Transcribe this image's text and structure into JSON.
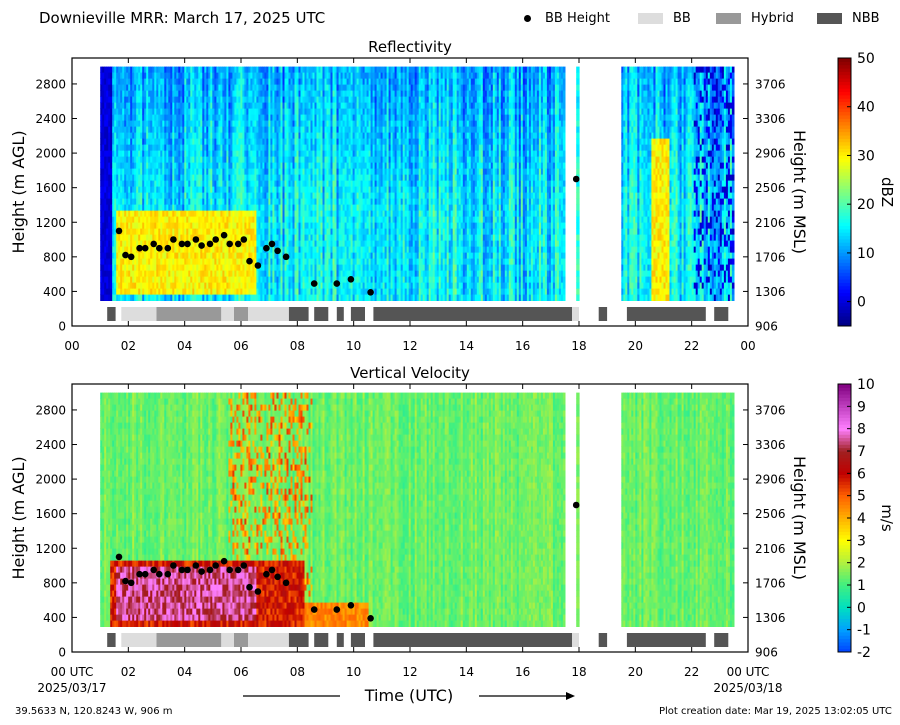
{
  "header": {
    "title": "Downieville MRR:  March 17, 2025 UTC",
    "legend": [
      {
        "label": "BB Height",
        "kind": "dot",
        "color": "#000000"
      },
      {
        "label": "BB",
        "kind": "bar",
        "color": "#dddddd"
      },
      {
        "label": "Hybrid",
        "kind": "bar",
        "color": "#999999"
      },
      {
        "label": "NBB",
        "kind": "bar",
        "color": "#555555"
      }
    ]
  },
  "footer": {
    "location": "39.5633 N, 120.8243 W, 906 m",
    "created": "Plot creation date: Mar 19, 2025 13:02:05 UTC",
    "x_axis_title": "Time (UTC)",
    "start_label": [
      "00 UTC",
      "2025/03/17"
    ],
    "end_label": [
      "00 UTC",
      "2025/03/18"
    ]
  },
  "chart_data": [
    {
      "type": "heatmap",
      "title": "Reflectivity",
      "xlabel": "Time (UTC)",
      "ylabel": "Height (m AGL)",
      "ylabel_right": "Height (m MSL)",
      "xlim": [
        0,
        24
      ],
      "ylim": [
        0,
        3100
      ],
      "x_ticks": [
        "00",
        "02",
        "04",
        "06",
        "08",
        "10",
        "12",
        "14",
        "16",
        "18",
        "20",
        "22",
        "00"
      ],
      "y_ticks": [
        0,
        400,
        800,
        1200,
        1600,
        2000,
        2400,
        2800
      ],
      "y_ticks_right": [
        906,
        1306,
        1706,
        2106,
        2506,
        2906,
        3306,
        3706
      ],
      "colorbar": {
        "label": "dBZ",
        "min": -5,
        "max": 50,
        "ticks": [
          0,
          10,
          20,
          30,
          40,
          50
        ],
        "colors": [
          "#00007f",
          "#0000ff",
          "#0080ff",
          "#00ffff",
          "#7fff7f",
          "#ffff00",
          "#ff8000",
          "#ff0000",
          "#7f0000"
        ]
      },
      "data_coverage_hours": [
        [
          1.0,
          17.5
        ],
        [
          17.9,
          18.0
        ],
        [
          19.5,
          23.5
        ]
      ],
      "enhanced_region": {
        "x": [
          1.5,
          6.5
        ],
        "y": [
          400,
          1350
        ],
        "value": 30
      },
      "bb_height": {
        "x": [
          1.67,
          1.9,
          2.1,
          2.4,
          2.6,
          2.9,
          3.1,
          3.4,
          3.6,
          3.9,
          4.1,
          4.4,
          4.6,
          4.9,
          5.1,
          5.4,
          5.6,
          5.9,
          6.1,
          6.3,
          6.6,
          6.9,
          7.1,
          7.3,
          7.6,
          8.6,
          9.4,
          9.9,
          10.6,
          17.9
        ],
        "y": [
          1100,
          820,
          800,
          900,
          900,
          950,
          900,
          900,
          1000,
          950,
          950,
          1000,
          930,
          950,
          1000,
          1050,
          950,
          950,
          1000,
          750,
          700,
          900,
          950,
          870,
          800,
          490,
          490,
          540,
          390,
          1700
        ]
      },
      "bb_type": [
        {
          "start": 1.25,
          "end": 1.55,
          "type": "NBB"
        },
        {
          "start": 1.75,
          "end": 3.0,
          "type": "BB"
        },
        {
          "start": 3.0,
          "end": 5.3,
          "type": "Hybrid"
        },
        {
          "start": 5.3,
          "end": 5.75,
          "type": "BB"
        },
        {
          "start": 5.75,
          "end": 6.25,
          "type": "Hybrid"
        },
        {
          "start": 6.25,
          "end": 7.7,
          "type": "BB"
        },
        {
          "start": 7.7,
          "end": 8.4,
          "type": "NBB"
        },
        {
          "start": 8.6,
          "end": 9.1,
          "type": "NBB"
        },
        {
          "start": 9.4,
          "end": 9.65,
          "type": "NBB"
        },
        {
          "start": 9.9,
          "end": 10.4,
          "type": "NBB"
        },
        {
          "start": 10.7,
          "end": 17.75,
          "type": "NBB"
        },
        {
          "start": 17.75,
          "end": 18.0,
          "type": "BB"
        },
        {
          "start": 18.7,
          "end": 19.0,
          "type": "NBB"
        },
        {
          "start": 19.7,
          "end": 22.5,
          "type": "NBB"
        },
        {
          "start": 22.8,
          "end": 23.3,
          "type": "NBB"
        }
      ]
    },
    {
      "type": "heatmap",
      "title": "Vertical Velocity",
      "xlabel": "Time (UTC)",
      "ylabel": "Height (m AGL)",
      "ylabel_right": "Height (m MSL)",
      "xlim": [
        0,
        24
      ],
      "ylim": [
        0,
        3100
      ],
      "x_ticks": [
        "00",
        "02",
        "04",
        "06",
        "08",
        "10",
        "12",
        "14",
        "16",
        "18",
        "20",
        "22",
        "00"
      ],
      "y_ticks": [
        0,
        400,
        800,
        1200,
        1600,
        2000,
        2400,
        2800
      ],
      "y_ticks_right": [
        906,
        1306,
        1706,
        2106,
        2506,
        2906,
        3306,
        3706
      ],
      "colorbar": {
        "label": "m/s",
        "min": -2,
        "max": 10,
        "ticks": [
          -2,
          -1,
          0,
          1,
          2,
          3,
          4,
          5,
          6,
          7,
          8,
          9,
          10
        ],
        "colors": [
          "#0040ff",
          "#00a0ff",
          "#00e0c0",
          "#40f080",
          "#b0f040",
          "#ffff00",
          "#ffb000",
          "#ff6000",
          "#c00000",
          "#a02020",
          "#ff80ff",
          "#c040c0",
          "#800080"
        ]
      },
      "data_coverage_hours": [
        [
          1.0,
          17.5
        ],
        [
          17.9,
          18.0
        ],
        [
          19.5,
          23.5
        ]
      ],
      "enhanced_region": {
        "x": [
          1.5,
          6.5
        ],
        "y": [
          400,
          1000
        ],
        "value": 7.5
      },
      "bb_height": {
        "x": [
          1.67,
          1.9,
          2.1,
          2.4,
          2.6,
          2.9,
          3.1,
          3.4,
          3.6,
          3.9,
          4.1,
          4.4,
          4.6,
          4.9,
          5.1,
          5.4,
          5.6,
          5.9,
          6.1,
          6.3,
          6.6,
          6.9,
          7.1,
          7.3,
          7.6,
          8.6,
          9.4,
          9.9,
          10.6,
          17.9
        ],
        "y": [
          1100,
          820,
          800,
          900,
          900,
          950,
          900,
          900,
          1000,
          950,
          950,
          1000,
          930,
          950,
          1000,
          1050,
          950,
          950,
          1000,
          750,
          700,
          900,
          950,
          870,
          800,
          490,
          490,
          540,
          390,
          1700
        ]
      },
      "bb_type": [
        {
          "start": 1.25,
          "end": 1.55,
          "type": "NBB"
        },
        {
          "start": 1.75,
          "end": 3.0,
          "type": "BB"
        },
        {
          "start": 3.0,
          "end": 5.3,
          "type": "Hybrid"
        },
        {
          "start": 5.3,
          "end": 5.75,
          "type": "BB"
        },
        {
          "start": 5.75,
          "end": 6.25,
          "type": "Hybrid"
        },
        {
          "start": 6.25,
          "end": 7.7,
          "type": "BB"
        },
        {
          "start": 7.7,
          "end": 8.4,
          "type": "NBB"
        },
        {
          "start": 8.6,
          "end": 9.1,
          "type": "NBB"
        },
        {
          "start": 9.4,
          "end": 9.65,
          "type": "NBB"
        },
        {
          "start": 9.9,
          "end": 10.4,
          "type": "NBB"
        },
        {
          "start": 10.7,
          "end": 17.75,
          "type": "NBB"
        },
        {
          "start": 17.75,
          "end": 18.0,
          "type": "BB"
        },
        {
          "start": 18.7,
          "end": 19.0,
          "type": "NBB"
        },
        {
          "start": 19.7,
          "end": 22.5,
          "type": "NBB"
        },
        {
          "start": 22.8,
          "end": 23.3,
          "type": "NBB"
        }
      ]
    }
  ]
}
